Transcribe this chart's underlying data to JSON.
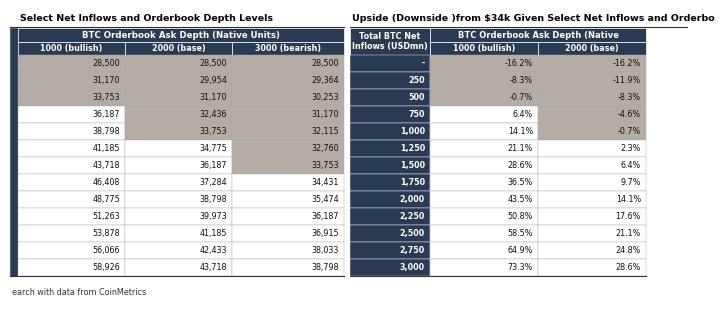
{
  "title_left": "Select Net Inflows and Orderbook Depth Levels",
  "title_right": "Upside (Downside )from $34k Given Select Net Inflows and Orderbo",
  "footer": "earch with data from CoinMetrics",
  "left_table": {
    "header1": "BTC Orderbook Ask Depth (Native Units)",
    "header2": [
      "1000 (bullish)",
      "2000 (base)",
      "3000 (bearish)"
    ],
    "rows": [
      [
        "28,500",
        "28,500",
        "28,500"
      ],
      [
        "31,170",
        "29,954",
        "29,364"
      ],
      [
        "33,753",
        "31,170",
        "30,253"
      ],
      [
        "36,187",
        "32,436",
        "31,170"
      ],
      [
        "38,798",
        "33,753",
        "32,115"
      ],
      [
        "41,185",
        "34,775",
        "32,760"
      ],
      [
        "43,718",
        "36,187",
        "33,753"
      ],
      [
        "46,408",
        "37,284",
        "34,431"
      ],
      [
        "48,775",
        "38,798",
        "35,474"
      ],
      [
        "51,263",
        "39,973",
        "36,187"
      ],
      [
        "53,878",
        "41,185",
        "36,915"
      ],
      [
        "56,066",
        "42,433",
        "38,033"
      ],
      [
        "58,926",
        "43,718",
        "38,798"
      ]
    ],
    "shaded_col0_rows": [
      0,
      1,
      2
    ],
    "shaded_col1_rows": [
      0,
      1,
      2,
      3,
      4
    ],
    "shaded_col2_rows": [
      0,
      1,
      2,
      3,
      4,
      5,
      6
    ]
  },
  "right_table": {
    "header1_col0": "Total BTC Net\nInflows (USDmn)",
    "header1_col1": "BTC Orderbook Ask Depth (Native",
    "header2_cols": [
      "1000 (bullish)",
      "2000 (base)"
    ],
    "rows": [
      [
        "-",
        "-16.2%",
        "-16.2%"
      ],
      [
        "250",
        "-8.3%",
        "-11.9%"
      ],
      [
        "500",
        "-0.7%",
        "-8.3%"
      ],
      [
        "750",
        "6.4%",
        "-4.6%"
      ],
      [
        "1,000",
        "14.1%",
        "-0.7%"
      ],
      [
        "1,250",
        "21.1%",
        "2.3%"
      ],
      [
        "1,500",
        "28.6%",
        "6.4%"
      ],
      [
        "1,750",
        "36.5%",
        "9.7%"
      ],
      [
        "2,000",
        "43.5%",
        "14.1%"
      ],
      [
        "2,250",
        "50.8%",
        "17.6%"
      ],
      [
        "2,500",
        "58.5%",
        "21.1%"
      ],
      [
        "2,750",
        "64.9%",
        "24.8%"
      ],
      [
        "3,000",
        "73.3%",
        "28.6%"
      ]
    ],
    "shaded_col1_rows": [
      0,
      1,
      2
    ],
    "shaded_col2_rows": [
      0,
      1,
      2,
      3,
      4
    ],
    "shaded_col3_rows": [
      0,
      1,
      2,
      3,
      4,
      5,
      6
    ]
  },
  "dark_blue": "#293B52",
  "gray_shade": "#B5ADA5",
  "white": "#FFFFFF",
  "light_gray": "#F5F5F5",
  "cell_border": "#AAAAAA",
  "title_sep_color": "#333333",
  "text_dark": "#111111",
  "footer_color": "#333333"
}
